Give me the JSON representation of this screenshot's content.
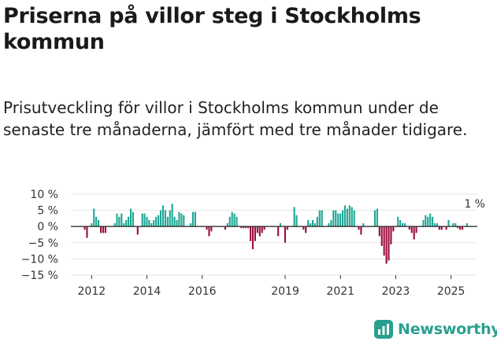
{
  "title": "Priserna på villor steg i Stockholms kommun",
  "subtitle": "Prisutveckling för villor i Stockholms kommun under de senaste tre månaderna, jämfört med tre månader tidigare.",
  "brand": "Newsworthy",
  "colors": {
    "positive": "#1ea795",
    "negative": "#9b0d3e",
    "axis": "#333333",
    "grid": "#e6e6e6",
    "brand": "#29a08f"
  },
  "chart_data": {
    "type": "bar",
    "title": "Priserna på villor steg i Stockholms kommun",
    "xlabel": "",
    "ylabel": "",
    "ylim": [
      -15,
      10
    ],
    "yticks": [
      -15,
      -10,
      -5,
      0,
      5,
      10
    ],
    "ytick_labels": [
      "−15 %",
      "−10 %",
      "−5 %",
      "0 %",
      "5 %",
      "10 %"
    ],
    "xlim": [
      2011.25,
      2025.95
    ],
    "xtick_values": [
      2012,
      2014,
      2016,
      2019,
      2021,
      2023,
      2025
    ],
    "xtick_labels": [
      "2012",
      "2014",
      "2016",
      "2019",
      "2021",
      "2023",
      "2025"
    ],
    "grid": true,
    "annotation": {
      "x": 2025.83,
      "value": 1,
      "text": "1 %"
    },
    "x_start": 2011.75,
    "x_step": 0.0833,
    "values": [
      -1,
      -3.5,
      0,
      1,
      5.5,
      3,
      2,
      -2,
      -2,
      -2,
      0,
      0,
      0,
      1,
      4,
      3,
      4,
      1,
      2,
      3,
      5.5,
      4.5,
      0,
      -2.5,
      0,
      4,
      4,
      3,
      2,
      1,
      2,
      3,
      3.5,
      5,
      6.5,
      5,
      3,
      5,
      7,
      3,
      2,
      4.5,
      4,
      3.5,
      0,
      0,
      1,
      4.5,
      4.5,
      0,
      0,
      0,
      0,
      -1,
      -3,
      -1.5,
      0,
      0,
      0,
      0,
      0,
      -1,
      1,
      3,
      4.5,
      4,
      3,
      0,
      -0.5,
      -0.5,
      -0.5,
      -0.5,
      -4.5,
      -7,
      -4.5,
      -2,
      -3,
      -2,
      -1,
      0,
      0,
      0,
      0,
      0,
      -3,
      1,
      0,
      -5,
      -1,
      0,
      0,
      6,
      3.5,
      0,
      0,
      -1,
      -2,
      2,
      1,
      2,
      1,
      3,
      5,
      5,
      0,
      0,
      1,
      2,
      5,
      5,
      4,
      4,
      5,
      6.5,
      5.5,
      6.5,
      6,
      5,
      0,
      -1,
      -2.5,
      1,
      0,
      0,
      0,
      0,
      5,
      5.5,
      -3,
      -6,
      -9,
      -11.5,
      -10.5,
      -5.5,
      -1.5,
      0,
      3,
      2,
      1,
      1,
      0,
      -1,
      -2,
      -4,
      -2,
      0,
      0,
      2,
      3.5,
      3,
      4,
      3,
      1,
      1,
      -1,
      -1,
      0,
      -1,
      2,
      0,
      1,
      1,
      -0.5,
      -1,
      -1,
      0,
      1
    ]
  }
}
